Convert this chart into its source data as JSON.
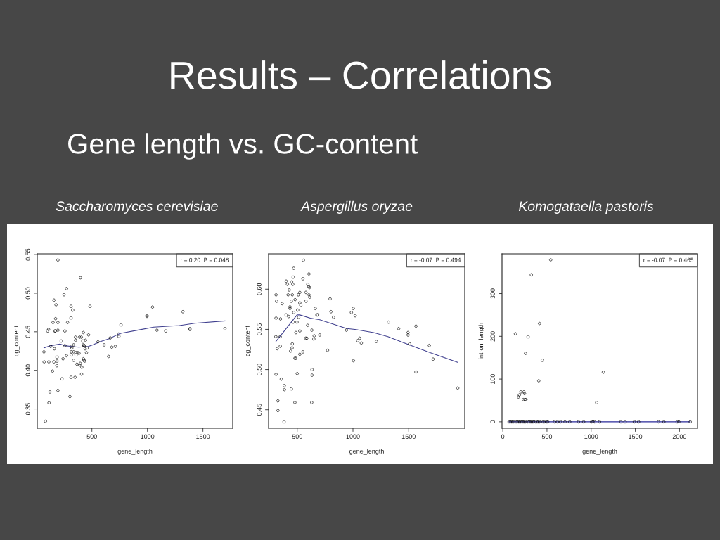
{
  "chart_data": [
    {
      "type": "other",
      "title": "Results – Correlations",
      "subtitle": "Gene length vs. GC-content"
    },
    {
      "type": "scatter",
      "title": "Saccharomyces cerevisiae",
      "xlabel": "gene_length",
      "ylabel": "cg_content",
      "annotations": [
        "r = 0.20  P = 0.048"
      ],
      "xlim": [
        8,
        1768
      ],
      "ylim": [
        0.325,
        0.551
      ],
      "xticks": [
        500,
        1000,
        1500
      ],
      "yticks": [
        0.35,
        {
          "value": 0.4,
          "label": "0.40"
        },
        0.45,
        {
          "value": 0.5,
          "label": "0.50"
        },
        0.55
      ],
      "grid": false,
      "series": [
        {
          "type": "scatter",
          "marker": "circle",
          "color": "#000000",
          "x": [
            194,
            397,
            272,
            249,
            158,
            177,
            312,
            483,
            327,
            173,
            312,
            150,
            194,
            281,
            110,
            101,
            165,
            171,
            194,
            257,
            424,
            470,
            352,
            388,
            405,
            352,
            443,
            418,
            224,
            555,
            422,
            428,
            432,
            257,
            335,
            314,
            129,
            610,
            665,
            741,
            743,
            762,
            679,
            711,
            162,
            319,
            439,
            456,
            68,
            314,
            335,
            357,
            373,
            384,
            451,
            314,
            357,
            272,
            186,
            240,
            424,
            428,
            435,
            335,
            186,
            158,
            70,
            112,
            395,
            365,
            390,
            409,
            184,
            146,
            407,
            312,
            348,
            230,
            650,
            194,
            122,
            302,
            114,
            82,
            996,
            996,
            1046,
            1086,
            1165,
            1319,
            1382,
            1382,
            1698
          ],
          "values": [
            0.543,
            0.52,
            0.506,
            0.498,
            0.491,
            0.485,
            0.483,
            0.483,
            0.478,
            0.467,
            0.468,
            0.462,
            0.462,
            0.462,
            0.453,
            0.451,
            0.451,
            0.451,
            0.452,
            0.451,
            0.449,
            0.446,
            0.443,
            0.443,
            0.443,
            0.439,
            0.439,
            0.438,
            0.438,
            0.437,
            0.433,
            0.432,
            0.432,
            0.432,
            0.433,
            0.431,
            0.431,
            0.433,
            0.442,
            0.447,
            0.444,
            0.459,
            0.43,
            0.431,
            0.428,
            0.429,
            0.428,
            0.429,
            0.424,
            0.424,
            0.424,
            0.423,
            0.423,
            0.422,
            0.423,
            0.42,
            0.42,
            0.419,
            0.417,
            0.415,
            0.415,
            0.413,
            0.412,
            0.413,
            0.412,
            0.411,
            0.411,
            0.411,
            0.409,
            0.408,
            0.407,
            0.404,
            0.406,
            0.399,
            0.395,
            0.391,
            0.391,
            0.389,
            0.418,
            0.374,
            0.372,
            0.366,
            0.358,
            0.334,
            0.471,
            0.47,
            0.482,
            0.452,
            0.451,
            0.476,
            0.454,
            0.453,
            0.454
          ]
        },
        {
          "type": "line",
          "line_style": "solid",
          "color": "#40408f",
          "x": [
            68,
            129,
            213,
            255,
            319,
            382,
            466,
            508,
            572,
            656,
            741,
            762,
            909,
            1057,
            1289,
            1426,
            1698
          ],
          "values": [
            0.429,
            0.432,
            0.434,
            0.432,
            0.431,
            0.43,
            0.431,
            0.433,
            0.437,
            0.441,
            0.447,
            0.448,
            0.452,
            0.456,
            0.458,
            0.461,
            0.464
          ]
        }
      ]
    },
    {
      "type": "scatter",
      "title": "Aspergillus oryzae",
      "xlabel": "gene_length",
      "ylabel": "cg_content",
      "annotations": [
        "r = -0.07  P = 0.494"
      ],
      "xlim": [
        243,
        2003
      ],
      "ylim": [
        0.427,
        0.644
      ],
      "xticks": [
        500,
        1000,
        1500
      ],
      "yticks": [
        0.45,
        {
          "value": 0.5,
          "label": "0.50"
        },
        0.55,
        {
          "value": 0.6,
          "label": "0.60"
        }
      ],
      "grid": false,
      "series": [
        {
          "type": "scatter",
          "marker": "circle",
          "color": "#000000",
          "x": [
            555,
            468,
            605,
            464,
            551,
            401,
            412,
            450,
            460,
            595,
            603,
            610,
            428,
            310,
            418,
            456,
            510,
            523,
            578,
            605,
            612,
            315,
            365,
            447,
            481,
            523,
            532,
            578,
            795,
            435,
            435,
            662,
            504,
            469,
            803,
            1003,
            986,
            1020,
            401,
            423,
            677,
            683,
            826,
            310,
            350,
            464,
            498,
            513,
            593,
            631,
            488,
            523,
            942,
            586,
            576,
            649,
            652,
            702,
            308,
            347,
            321,
            348,
            456,
            441,
            454,
            479,
            487,
            523,
            551,
            772,
            1043,
            1060,
            1075,
            1210,
            1319,
            1410,
            1005,
            310,
            500,
            633,
            633,
            357,
            384,
            386,
            447,
            327,
            479,
            630,
            327,
            382,
            1494,
            1494,
            1508,
            1565,
            1565,
            1685,
            1719,
            1940
          ],
          "values": [
            0.636,
            0.626,
            0.619,
            0.615,
            0.613,
            0.61,
            0.606,
            0.609,
            0.606,
            0.606,
            0.603,
            0.602,
            0.599,
            0.593,
            0.593,
            0.593,
            0.593,
            0.596,
            0.596,
            0.593,
            0.59,
            0.585,
            0.582,
            0.585,
            0.587,
            0.583,
            0.58,
            0.585,
            0.588,
            0.578,
            0.576,
            0.576,
            0.574,
            0.571,
            0.572,
            0.576,
            0.571,
            0.567,
            0.568,
            0.566,
            0.568,
            0.568,
            0.565,
            0.564,
            0.563,
            0.559,
            0.559,
            0.565,
            0.555,
            0.549,
            0.546,
            0.548,
            0.549,
            0.539,
            0.539,
            0.538,
            0.542,
            0.543,
            0.541,
            0.541,
            0.526,
            0.529,
            0.532,
            0.523,
            0.527,
            0.514,
            0.514,
            0.519,
            0.522,
            0.524,
            0.536,
            0.539,
            0.533,
            0.535,
            0.559,
            0.551,
            0.511,
            0.494,
            0.495,
            0.5,
            0.493,
            0.488,
            0.48,
            0.475,
            0.476,
            0.461,
            0.459,
            0.459,
            0.449,
            0.435,
            0.546,
            0.543,
            0.532,
            0.554,
            0.497,
            0.53,
            0.513,
            0.477
          ]
        },
        {
          "type": "line",
          "line_style": "solid",
          "color": "#40408f",
          "x": [
            309,
            344,
            407,
            498,
            523,
            618,
            702,
            944,
            1018,
            1186,
            1313,
            1481,
            1692,
            1940
          ],
          "values": [
            0.535,
            0.541,
            0.552,
            0.568,
            0.568,
            0.564,
            0.562,
            0.551,
            0.55,
            0.546,
            0.541,
            0.532,
            0.521,
            0.509
          ]
        }
      ]
    },
    {
      "type": "scatter",
      "title": "Komogataella pastoris",
      "xlabel": "gene_length",
      "ylabel": "intron_length",
      "annotations": [
        "r = -0.07  P = 0.465"
      ],
      "xlim": [
        -9,
        2204
      ],
      "ylim": [
        -15,
        393
      ],
      "xticks": [
        0,
        500,
        1000,
        1500,
        2000
      ],
      "yticks": [
        0,
        100,
        200,
        300
      ],
      "grid": false,
      "series": [
        {
          "type": "scatter",
          "marker": "circle",
          "color": "#000000",
          "x": [
            71,
            85,
            98,
            111,
            124,
            151,
            164,
            177,
            190,
            204,
            217,
            230,
            243,
            257,
            283,
            296,
            310,
            323,
            336,
            349,
            370,
            389,
            402,
            415,
            455,
            468,
            495,
            508,
            585,
            619,
            653,
            704,
            757,
            857,
            915,
            1005,
            1021,
            1040,
            1095,
            1336,
            1384,
            1489,
            1537,
            1762,
            1823,
            1974,
            1992,
            2122,
            542,
            323,
            415,
            143,
            286,
            257,
            447,
            407,
            1063,
            1138,
            177,
            188,
            204,
            238,
            246,
            233,
            251,
            262
          ],
          "values": [
            0,
            0,
            0,
            0,
            0,
            0,
            0,
            0,
            0,
            0,
            0,
            0,
            0,
            0,
            0,
            0,
            0,
            0,
            0,
            0,
            0,
            0,
            0,
            0,
            0,
            0,
            0,
            0,
            0,
            0,
            0,
            0,
            0,
            0,
            0,
            0,
            0,
            0,
            0,
            0,
            0,
            0,
            0,
            0,
            0,
            0,
            0,
            0,
            379,
            344,
            230,
            206,
            199,
            160,
            144,
            96,
            45,
            116,
            58,
            63,
            70,
            70,
            66,
            52,
            52,
            52
          ]
        },
        {
          "type": "line",
          "line_style": "solid",
          "color": "#2a2a9a",
          "x": [
            71,
            2122
          ],
          "values": [
            0,
            0
          ]
        }
      ]
    }
  ]
}
